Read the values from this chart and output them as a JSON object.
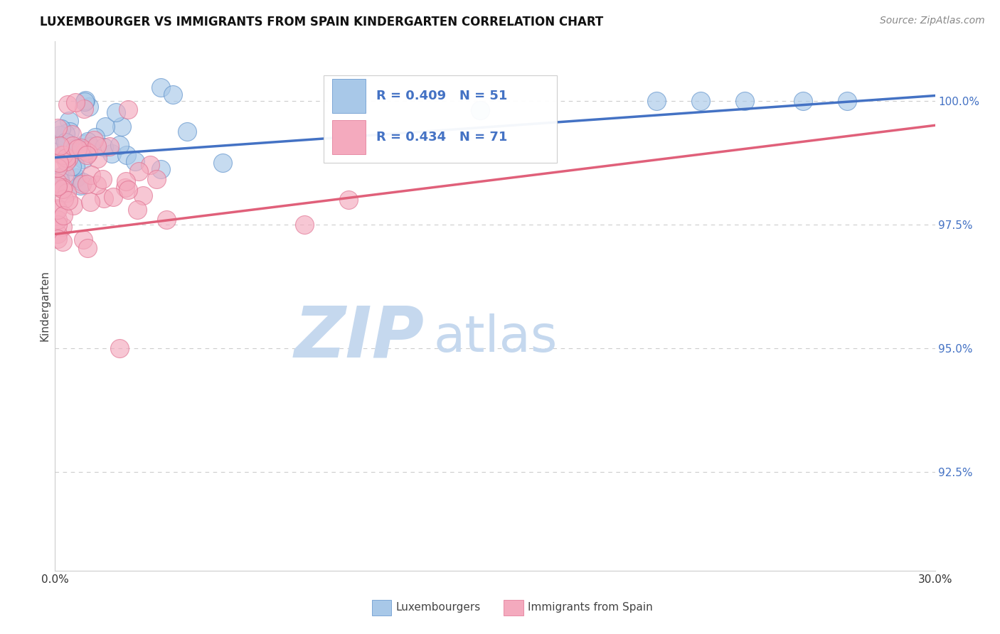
{
  "title": "LUXEMBOURGER VS IMMIGRANTS FROM SPAIN KINDERGARTEN CORRELATION CHART",
  "source_text": "Source: ZipAtlas.com",
  "ylabel": "Kindergarten",
  "xlim": [
    0.0,
    30.0
  ],
  "ylim": [
    90.5,
    101.2
  ],
  "ytick_labels": [
    "92.5%",
    "95.0%",
    "97.5%",
    "100.0%"
  ],
  "ytick_values": [
    92.5,
    95.0,
    97.5,
    100.0
  ],
  "xtick_values": [
    0.0,
    5.0,
    10.0,
    15.0,
    20.0,
    25.0,
    30.0
  ],
  "blue_color": "#A8C8E8",
  "blue_edge_color": "#5B8FCA",
  "blue_line_color": "#4472C4",
  "pink_color": "#F4AABE",
  "pink_edge_color": "#E07090",
  "pink_line_color": "#E0607A",
  "legend_text_blue": "R = 0.409   N = 51",
  "legend_text_pink": "R = 0.434   N = 71",
  "legend_label_blue": "Luxembourgers",
  "legend_label_pink": "Immigrants from Spain",
  "watermark_zip": "ZIP",
  "watermark_atlas": "atlas",
  "watermark_color_zip": "#C5D8EE",
  "watermark_color_atlas": "#C5D8EE",
  "blue_trend_x": [
    0.0,
    30.0
  ],
  "blue_trend_y": [
    98.85,
    100.1
  ],
  "pink_trend_x": [
    0.0,
    30.0
  ],
  "pink_trend_y": [
    97.3,
    99.5
  ],
  "title_fontsize": 12,
  "source_fontsize": 10,
  "tick_label_fontsize": 11
}
